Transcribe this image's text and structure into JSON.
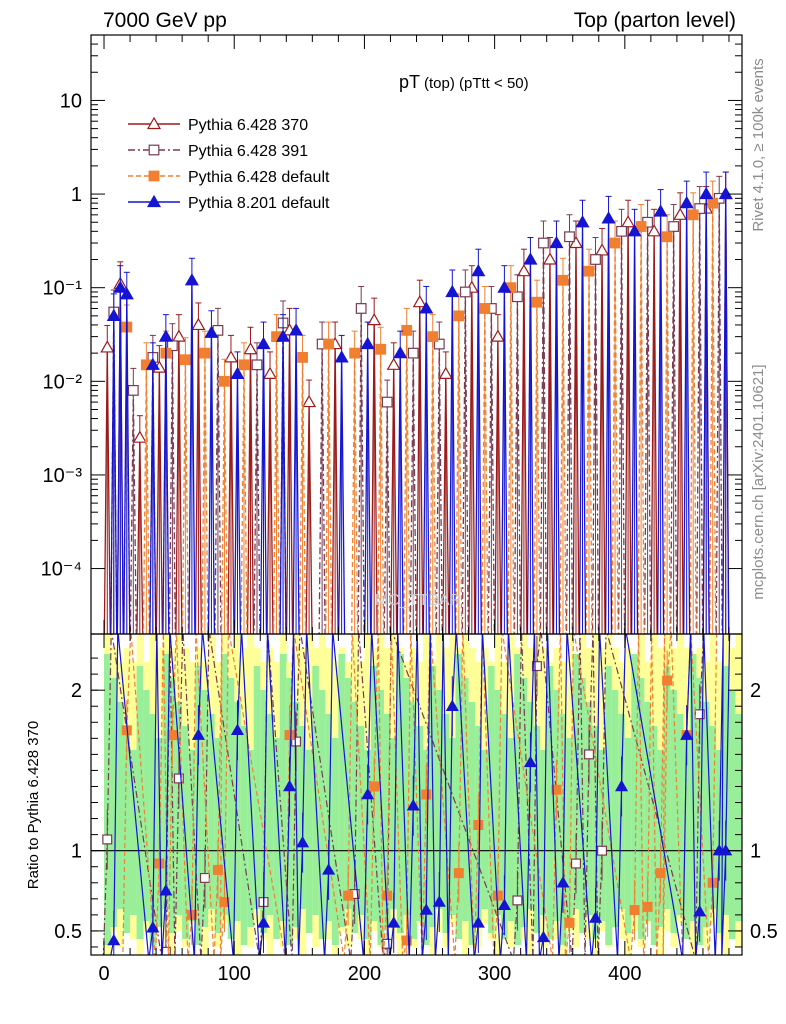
{
  "header": {
    "left": "7000 GeV pp",
    "right": "Top (parton level)"
  },
  "side_labels": {
    "rivet": "Rivet 4.1.0, ≥ 100k events",
    "mcplots": "mcplots.cern.ch [arXiv:2401.10621]"
  },
  "watermark": "MC_TTBAR",
  "chart_data": [
    {
      "type": "line",
      "title": "pT",
      "title_sub": "(top) (pTtt < 50)",
      "xlabel": "",
      "ylabel": "",
      "xlim": [
        -10,
        490
      ],
      "ylim": [
        2e-05,
        50
      ],
      "yscale": "log",
      "yticks": [
        0.0001,
        0.001,
        0.01,
        0.1,
        1,
        10
      ],
      "ytick_labels": [
        "10⁻⁴",
        "10⁻³",
        "10⁻²",
        "10⁻¹",
        "1",
        "10"
      ],
      "legend_position": "top-left",
      "series": [
        {
          "name": "Pythia 6.428 370",
          "color": "#9b1b1b",
          "marker": "open-triangle",
          "x": [
            2.5,
            12.5,
            27.5,
            42.5,
            57.5,
            72.5,
            97.5,
            112.5,
            127.5,
            142.5,
            157.5,
            177.5,
            207.5,
            222.5,
            242.5,
            262.5,
            282.5,
            302.5,
            322.5,
            342.5,
            362.5,
            382.5,
            402.5,
            422.5,
            442.5,
            462.5,
            477.5
          ],
          "y": [
            0.023,
            0.11,
            0.0025,
            0.014,
            0.03,
            0.04,
            0.018,
            0.022,
            0.012,
            0.035,
            0.006,
            0.025,
            0.045,
            0.015,
            0.07,
            0.012,
            0.1,
            0.03,
            0.15,
            0.2,
            0.3,
            0.25,
            0.5,
            0.4,
            0.6,
            0.7,
            1.0
          ]
        },
        {
          "name": "Pythia 6.428 391",
          "color": "#7a3a52",
          "marker": "open-square",
          "x": [
            7.5,
            22.5,
            37.5,
            52.5,
            87.5,
            117.5,
            137.5,
            167.5,
            197.5,
            217.5,
            237.5,
            257.5,
            277.5,
            297.5,
            317.5,
            337.5,
            357.5,
            377.5,
            397.5,
            417.5,
            437.5,
            457.5,
            472.5
          ],
          "y": [
            0.055,
            0.008,
            0.018,
            0.024,
            0.035,
            0.015,
            0.042,
            0.025,
            0.06,
            0.006,
            0.02,
            0.025,
            0.09,
            0.06,
            0.08,
            0.3,
            0.35,
            0.2,
            0.4,
            0.5,
            0.45,
            0.7,
            0.9
          ]
        },
        {
          "name": "Pythia 6.428 default",
          "color": "#f08030",
          "marker": "filled-square",
          "x": [
            17.5,
            32.5,
            47.5,
            62.5,
            77.5,
            92.5,
            107.5,
            132.5,
            152.5,
            172.5,
            192.5,
            212.5,
            232.5,
            252.5,
            272.5,
            292.5,
            312.5,
            332.5,
            352.5,
            372.5,
            392.5,
            412.5,
            432.5,
            452.5,
            467.5
          ],
          "y": [
            0.038,
            0.015,
            0.02,
            0.017,
            0.02,
            0.01,
            0.015,
            0.03,
            0.018,
            0.025,
            0.02,
            0.022,
            0.035,
            0.03,
            0.05,
            0.06,
            0.1,
            0.07,
            0.12,
            0.15,
            0.3,
            0.45,
            0.35,
            0.6,
            0.8
          ]
        },
        {
          "name": "Pythia 8.201 default",
          "color": "#1414d2",
          "marker": "filled-triangle",
          "x": [
            7.5,
            12.5,
            17.5,
            37.5,
            47.5,
            67.5,
            82.5,
            102.5,
            122.5,
            137.5,
            147.5,
            182.5,
            202.5,
            227.5,
            247.5,
            267.5,
            287.5,
            307.5,
            327.5,
            347.5,
            367.5,
            387.5,
            407.5,
            427.5,
            447.5,
            462.5,
            477.5
          ],
          "y": [
            0.05,
            0.1,
            0.085,
            0.015,
            0.03,
            0.12,
            0.033,
            0.012,
            0.025,
            0.03,
            0.035,
            0.018,
            0.025,
            0.02,
            0.06,
            0.09,
            0.15,
            0.1,
            0.2,
            0.3,
            0.5,
            0.55,
            0.4,
            0.65,
            0.8,
            1.0,
            1.0
          ]
        }
      ]
    },
    {
      "type": "line",
      "title": "",
      "xlabel": "",
      "ylabel": "Ratio to Pythia 6.428 370",
      "xlim": [
        -10,
        490
      ],
      "ylim": [
        0.35,
        2.35
      ],
      "yticks": [
        0.5,
        1,
        2
      ],
      "ytick_labels": [
        "0.5",
        "1",
        "2"
      ],
      "xticks": [
        0,
        100,
        200,
        300,
        400
      ],
      "xtick_labels": [
        "0",
        "100",
        "200",
        "300",
        "400"
      ],
      "reference_line": 1,
      "series": [
        {
          "name": "Pythia 6.428 391",
          "color": "#7a3a52",
          "marker": "open-square",
          "x": [
            2.5,
            47.5,
            57.5,
            77.5,
            122.5,
            147.5,
            192.5,
            217.5,
            317.5,
            332.5,
            362.5,
            372.5,
            382.5,
            457.5
          ],
          "y": [
            1.07,
            0.37,
            1.45,
            0.83,
            0.68,
            1.68,
            0.73,
            0.42,
            0.69,
            2.15,
            0.92,
            1.6,
            1.0,
            1.85
          ]
        },
        {
          "name": "Pythia 6.428 default",
          "color": "#f08030",
          "marker": "filled-square",
          "x": [
            17.5,
            42.5,
            52.5,
            67.5,
            87.5,
            92.5,
            142.5,
            187.5,
            207.5,
            217.5,
            232.5,
            247.5,
            272.5,
            287.5,
            302.5,
            347.5,
            357.5,
            407.5,
            417.5,
            427.5,
            432.5,
            447.5,
            467.5
          ],
          "y": [
            1.75,
            0.92,
            1.72,
            0.6,
            0.88,
            0.68,
            1.72,
            0.72,
            1.4,
            0.72,
            0.44,
            1.35,
            0.86,
            1.16,
            0.72,
            1.38,
            0.55,
            0.63,
            0.65,
            0.86,
            2.06,
            1.72,
            0.8
          ]
        },
        {
          "name": "Pythia 8.201 default",
          "color": "#1414d2",
          "marker": "filled-triangle",
          "x": [
            7.5,
            37.5,
            47.5,
            72.5,
            102.5,
            122.5,
            142.5,
            152.5,
            172.5,
            202.5,
            222.5,
            237.5,
            247.5,
            257.5,
            267.5,
            287.5,
            307.5,
            327.5,
            337.5,
            352.5,
            377.5,
            397.5,
            447.5,
            457.5,
            472.5,
            477.5
          ],
          "y": [
            0.44,
            0.52,
            0.75,
            1.72,
            1.75,
            0.55,
            1.4,
            1.05,
            0.88,
            1.35,
            0.55,
            1.28,
            0.63,
            0.68,
            1.9,
            0.55,
            0.66,
            1.55,
            0.46,
            0.8,
            0.58,
            1.4,
            1.72,
            0.62,
            1.0,
            1.0
          ]
        }
      ]
    }
  ]
}
